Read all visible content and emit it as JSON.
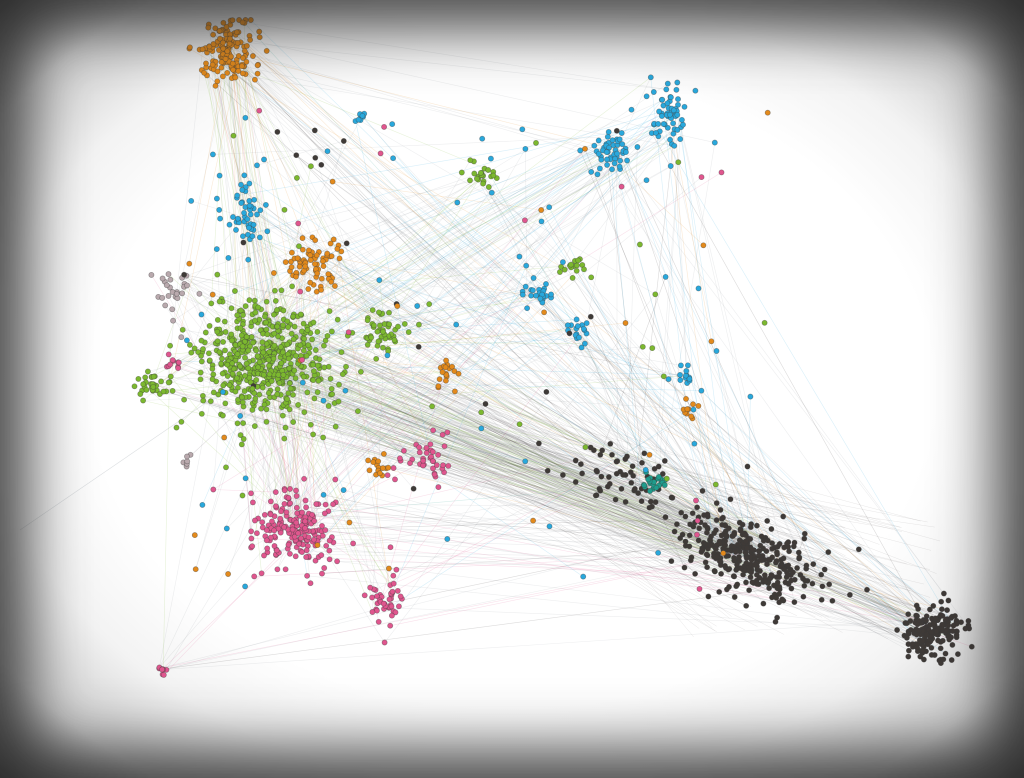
{
  "graph": {
    "description_type": "force-directed network",
    "colors": {
      "green": "#7cb82f",
      "blue": "#29a8dc",
      "orange": "#e38a1c",
      "pink": "#e0568e",
      "dark": "#3f3a37",
      "teal": "#1f9c8c",
      "gray": "#b9a9ad",
      "edge": "#9aa3a8",
      "background": "#ffffff",
      "frame_shadow": "#5a5a5a"
    },
    "clusters": [
      {
        "id": "green-main",
        "color": "green",
        "count": 520,
        "seed": 11
      },
      {
        "id": "green-east",
        "color": "green",
        "count": 45,
        "seed": 12
      },
      {
        "id": "green-west",
        "color": "green",
        "count": 30,
        "seed": 13
      },
      {
        "id": "green-top",
        "color": "green",
        "count": 22,
        "seed": 14
      },
      {
        "id": "green-mid",
        "color": "green",
        "count": 16,
        "seed": 15
      },
      {
        "id": "orange-top",
        "color": "orange",
        "count": 150,
        "seed": 21
      },
      {
        "id": "orange-mid",
        "color": "orange",
        "count": 70,
        "seed": 22
      },
      {
        "id": "orange-small",
        "color": "orange",
        "count": 18,
        "seed": 23
      },
      {
        "id": "orange-center",
        "color": "orange",
        "count": 16,
        "seed": 24
      },
      {
        "id": "orange-right",
        "color": "orange",
        "count": 10,
        "seed": 25
      },
      {
        "id": "blue-left",
        "color": "blue",
        "count": 55,
        "seed": 31
      },
      {
        "id": "blue-topright",
        "color": "blue",
        "count": 60,
        "seed": 32
      },
      {
        "id": "blue-topright2",
        "color": "blue",
        "count": 45,
        "seed": 33
      },
      {
        "id": "blue-mid",
        "color": "blue",
        "count": 24,
        "seed": 34
      },
      {
        "id": "blue-mid2",
        "color": "blue",
        "count": 16,
        "seed": 35
      },
      {
        "id": "blue-mid3",
        "color": "blue",
        "count": 12,
        "seed": 36
      },
      {
        "id": "blue-top",
        "color": "blue",
        "count": 8,
        "seed": 37
      },
      {
        "id": "pink-big",
        "color": "pink",
        "count": 190,
        "seed": 41
      },
      {
        "id": "pink-bottom",
        "color": "pink",
        "count": 42,
        "seed": 42
      },
      {
        "id": "pink-mid",
        "color": "pink",
        "count": 40,
        "seed": 43
      },
      {
        "id": "pink-small",
        "color": "pink",
        "count": 10,
        "seed": 44
      },
      {
        "id": "pink-flower",
        "color": "pink",
        "count": 8,
        "seed": 45
      },
      {
        "id": "dark-arm",
        "color": "dark",
        "count": 320,
        "seed": 51
      },
      {
        "id": "dark-end",
        "color": "dark",
        "count": 160,
        "seed": 52
      },
      {
        "id": "dark-tail",
        "color": "dark",
        "count": 60,
        "seed": 53
      },
      {
        "id": "teal-group",
        "color": "teal",
        "count": 22,
        "seed": 61
      },
      {
        "id": "gray-left",
        "color": "gray",
        "count": 26,
        "seed": 71
      },
      {
        "id": "gray-small",
        "color": "gray",
        "count": 6,
        "seed": 72
      }
    ],
    "edge_count": 900
  }
}
